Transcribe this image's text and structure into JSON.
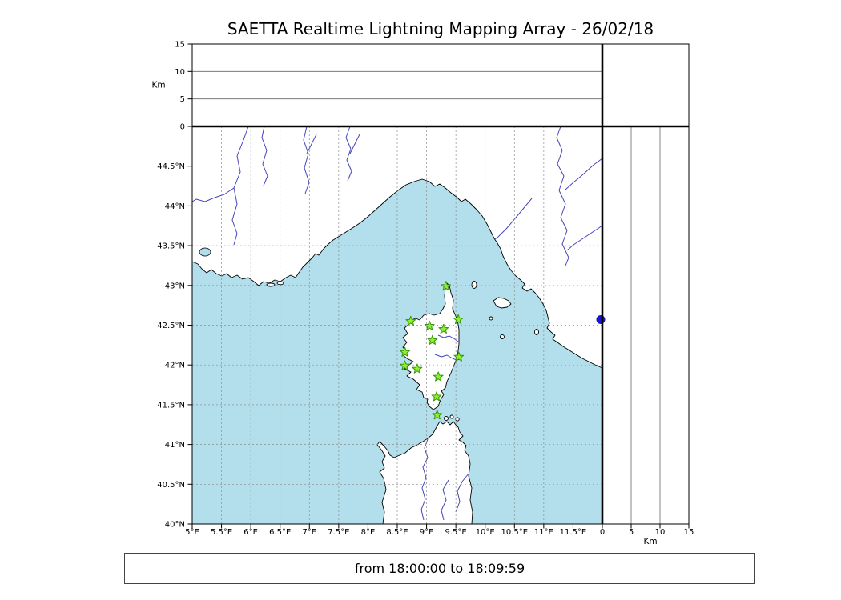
{
  "title": "SAETTA Realtime Lightning Mapping Array - 26/02/18",
  "time_range_label": "from 18:00:00 to 18:09:59",
  "colors": {
    "sea": "#b2dfeb",
    "land": "#ffffff",
    "coast": "#000000",
    "grid": "#8f8f8f",
    "panel_grid": "#666666",
    "river": "#4444bb",
    "station_fill": "#8ef02e",
    "station_stroke": "#379410",
    "flash": "#1616c8",
    "border": "#000000"
  },
  "chart_data": {
    "type": "scatter",
    "title": "SAETTA Realtime Lightning Mapping Array - 26/02/18",
    "footer": "from 18:00:00 to 18:09:59",
    "panels": {
      "altitude_top": {
        "ylabel": "Km",
        "ylim": [
          0,
          15
        ],
        "yticks": [
          0,
          5,
          10,
          15
        ],
        "gridlines": [
          5,
          10
        ],
        "points": []
      },
      "map": {
        "xlim": [
          5,
          12
        ],
        "ylim": [
          40,
          45
        ],
        "grid": "dashed",
        "xticks": [
          {
            "value": 5,
            "label": "5°E"
          },
          {
            "value": 5.5,
            "label": "5.5°E"
          },
          {
            "value": 6,
            "label": "6°E"
          },
          {
            "value": 6.5,
            "label": "6.5°E"
          },
          {
            "value": 7,
            "label": "7°E"
          },
          {
            "value": 7.5,
            "label": "7.5°E"
          },
          {
            "value": 8,
            "label": "8°E"
          },
          {
            "value": 8.5,
            "label": "8.5°E"
          },
          {
            "value": 9,
            "label": "9°E"
          },
          {
            "value": 9.5,
            "label": "9.5°E"
          },
          {
            "value": 10,
            "label": "10°E"
          },
          {
            "value": 10.5,
            "label": "10.5°E"
          },
          {
            "value": 11,
            "label": "11°E"
          },
          {
            "value": 11.5,
            "label": "11.5°E"
          }
        ],
        "yticks": [
          {
            "value": 40,
            "label": "40°N"
          },
          {
            "value": 40.5,
            "label": "40.5°N"
          },
          {
            "value": 41,
            "label": "41°N"
          },
          {
            "value": 41.5,
            "label": "41.5°N"
          },
          {
            "value": 42,
            "label": "42°N"
          },
          {
            "value": 42.5,
            "label": "42.5°N"
          },
          {
            "value": 43,
            "label": "43°N"
          },
          {
            "value": 43.5,
            "label": "43.5°N"
          },
          {
            "value": 44,
            "label": "44°N"
          },
          {
            "value": 44.5,
            "label": "44.5°N"
          }
        ],
        "series": [
          {
            "name": "lma-stations",
            "marker": "star",
            "points": [
              {
                "lon": 9.33,
                "lat": 42.99
              },
              {
                "lon": 8.73,
                "lat": 42.55
              },
              {
                "lon": 9.05,
                "lat": 42.49
              },
              {
                "lon": 9.29,
                "lat": 42.45
              },
              {
                "lon": 9.54,
                "lat": 42.57
              },
              {
                "lon": 9.1,
                "lat": 42.31
              },
              {
                "lon": 8.63,
                "lat": 42.16
              },
              {
                "lon": 9.55,
                "lat": 42.1
              },
              {
                "lon": 8.63,
                "lat": 41.99
              },
              {
                "lon": 8.84,
                "lat": 41.95
              },
              {
                "lon": 9.2,
                "lat": 41.85
              },
              {
                "lon": 9.17,
                "lat": 41.6
              },
              {
                "lon": 9.18,
                "lat": 41.37
              }
            ]
          }
        ]
      },
      "altitude_right": {
        "xlabel": "Km",
        "xlim": [
          0,
          15
        ],
        "xticks": [
          0,
          5,
          10,
          15
        ],
        "gridlines": [
          5,
          10
        ],
        "points": [
          {
            "alt_km": 0,
            "lat": 42.57
          }
        ]
      }
    }
  }
}
